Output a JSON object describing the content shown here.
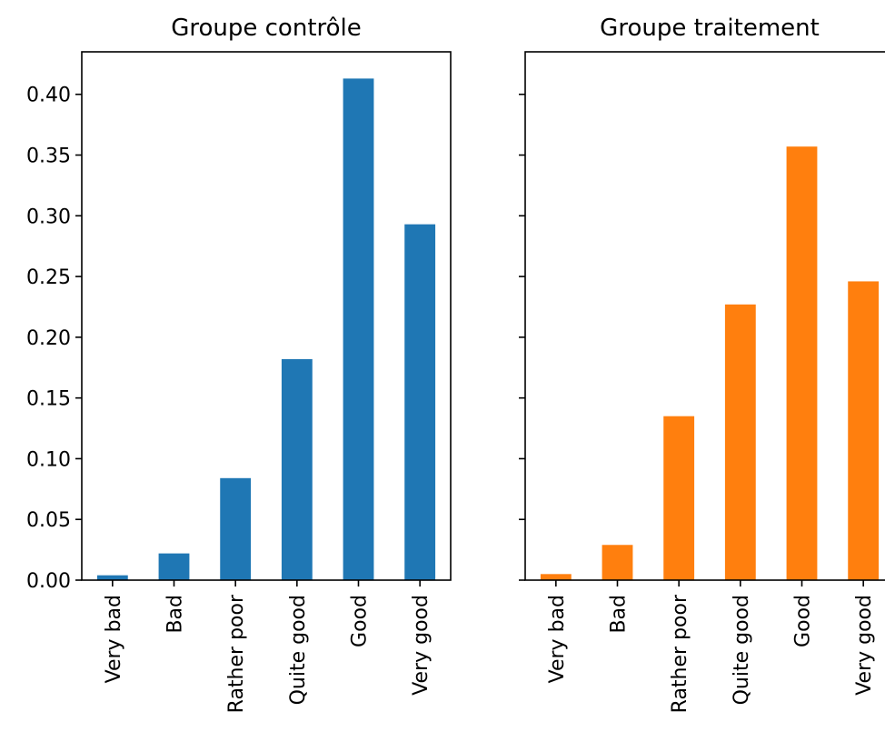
{
  "chart_data": [
    {
      "type": "bar",
      "title": "Groupe contrôle",
      "xlabel": "",
      "ylabel": "",
      "categories": [
        "Very bad",
        "Bad",
        "Rather poor",
        "Quite good",
        "Good",
        "Very good"
      ],
      "values": [
        0.004,
        0.022,
        0.084,
        0.182,
        0.413,
        0.293
      ],
      "color": "#1f77b4",
      "ylim": [
        0,
        0.435
      ],
      "yticks": [
        "0.00",
        "0.05",
        "0.10",
        "0.15",
        "0.20",
        "0.25",
        "0.30",
        "0.35",
        "0.40"
      ],
      "grid": false,
      "show_ytick_labels": true
    },
    {
      "type": "bar",
      "title": "Groupe traitement",
      "xlabel": "",
      "ylabel": "",
      "categories": [
        "Very bad",
        "Bad",
        "Rather poor",
        "Quite good",
        "Good",
        "Very good"
      ],
      "values": [
        0.005,
        0.029,
        0.135,
        0.227,
        0.357,
        0.246
      ],
      "color": "#ff7f0e",
      "ylim": [
        0,
        0.435
      ],
      "yticks": [
        "0.00",
        "0.05",
        "0.10",
        "0.15",
        "0.20",
        "0.25",
        "0.30",
        "0.35",
        "0.40"
      ],
      "grid": false,
      "show_ytick_labels": false
    }
  ]
}
